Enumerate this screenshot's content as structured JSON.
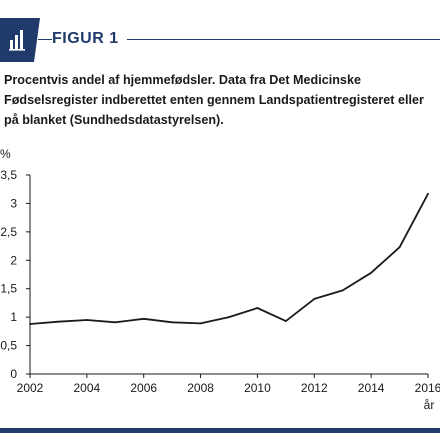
{
  "figure": {
    "label": "FIGUR 1",
    "caption": "Procentvis andel af hjemmefødsler. Data fra Det Medicinske Fødselsregister indberettet enten gennem Landspatientregisteret eller på blanket (Sundhedsdatastyrelsen).",
    "icon": "bar-chart-icon",
    "accent_color": "#1f3a6b"
  },
  "chart_data": {
    "type": "line",
    "title": "",
    "xlabel": "år",
    "ylabel": "%",
    "x": [
      2002,
      2003,
      2004,
      2005,
      2006,
      2007,
      2008,
      2009,
      2010,
      2011,
      2012,
      2013,
      2014,
      2015,
      2016
    ],
    "y": [
      0.88,
      0.92,
      0.95,
      0.91,
      0.97,
      0.91,
      0.89,
      1.0,
      1.16,
      0.93,
      1.32,
      1.47,
      1.78,
      2.23,
      3.17
    ],
    "xticks": [
      "2002",
      "2004",
      "2006",
      "2008",
      "2010",
      "2012",
      "2014",
      "2016"
    ],
    "yticks": [
      "0",
      "0,5",
      "1",
      "1,5",
      "2",
      "2,5",
      "3",
      "3,5"
    ],
    "xlim": [
      2002,
      2016
    ],
    "ylim": [
      0,
      3.5
    ],
    "grid": false,
    "line_color": "#1a1a1a"
  }
}
